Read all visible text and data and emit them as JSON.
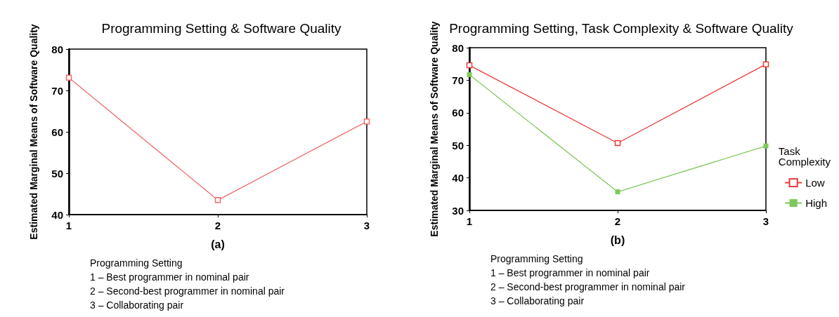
{
  "chart_data": [
    {
      "type": "line",
      "title": "Programming Setting & Software Quality",
      "xlabel": "(a)",
      "ylabel": "Estimated Marginal Means of Software Quality",
      "x": [
        1,
        2,
        3
      ],
      "xlim": [
        1,
        3
      ],
      "xticks": [
        1,
        2,
        3
      ],
      "ylim": [
        40,
        80
      ],
      "yticks": [
        40,
        50,
        60,
        70,
        80
      ],
      "series": [
        {
          "color": "#f26b6b",
          "values": [
            73.1,
            43.5,
            62.5
          ]
        }
      ],
      "marker": "square",
      "grid": false,
      "legend": false,
      "annotations": [
        "Programming Setting",
        "1 – Best programmer in nominal pair",
        "2 – Second-best programmer in nominal pair",
        "3 – Collaborating pair"
      ]
    },
    {
      "type": "line",
      "title": "Programming Setting, Task Complexity & Software Quality",
      "xlabel": "(b)",
      "ylabel": "Estimated Marginal Means of Software Quality",
      "x": [
        1,
        2,
        3
      ],
      "xlim": [
        1,
        3
      ],
      "xticks": [
        1,
        2,
        3
      ],
      "ylim": [
        30,
        80
      ],
      "yticks": [
        30,
        40,
        50,
        60,
        70,
        80
      ],
      "series": [
        {
          "name": "Low",
          "color": "#ec3b3b",
          "values": [
            74.6,
            50.7,
            74.9
          ]
        },
        {
          "name": "High",
          "color": "#7fc95c",
          "values": [
            71.7,
            35.7,
            49.8
          ]
        }
      ],
      "marker": "square",
      "grid": false,
      "legend": "right",
      "legend_title": "Task Complexity",
      "annotations": [
        "Programming Setting",
        "1 – Best programmer in nominal pair",
        "2 – Second-best programmer in nominal pair",
        "3 – Collaborating pair"
      ]
    }
  ]
}
